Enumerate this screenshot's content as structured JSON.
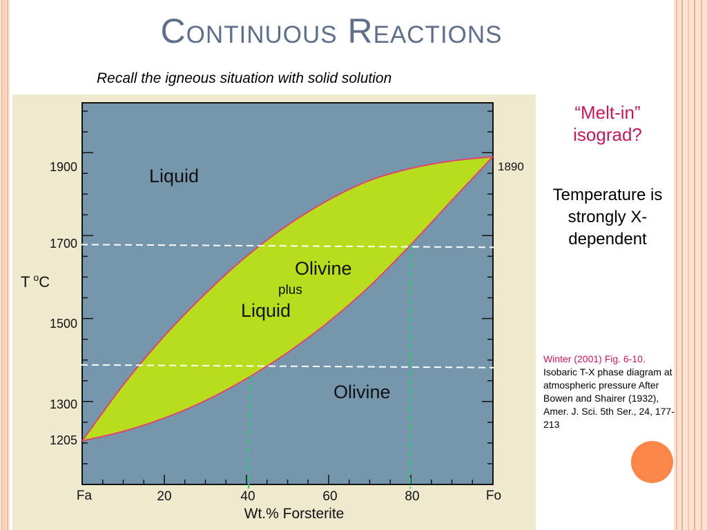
{
  "slide": {
    "title": "Continuous Reactions",
    "subtitle": "Recall the igneous situation with solid solution",
    "annotation_question": "“Melt-in” isograd?",
    "annotation_note": "Temperature is strongly X-dependent",
    "citation_ref": "Winter (2001) Fig. 6-10.",
    "citation_text": "Isobaric T-X phase diagram at atmospheric pressure After Bowen and Shairer (1932), Amer. J. Sci. 5th Ser., 24, 177-213"
  },
  "diagram": {
    "fields": {
      "liquid": "Liquid",
      "olivine_plus_liquid_1": "Olivine",
      "olivine_plus_liquid_2": "plus",
      "olivine_plus_liquid_3": "Liquid",
      "olivine": "Olivine"
    },
    "y_axis_label": "T",
    "y_axis_degree": "o",
    "y_axis_unit": "C",
    "x_axis_label": "Wt.% Forsterite",
    "y_ticks": [
      "1900",
      "1700",
      "1500",
      "1300"
    ],
    "x_ticks": [
      "Fa",
      "20",
      "40",
      "60",
      "80",
      "Fo"
    ],
    "endpoint_low": "1205",
    "endpoint_high": "1890",
    "colors": {
      "plot_bg": "#7596ad",
      "two_phase_field": "#b8dd1c",
      "boundary_curves": "#e0436f",
      "guide_lines_temperature": "#ffffff",
      "guide_lines_composition": "#21d36a"
    }
  },
  "chart_data": {
    "type": "line",
    "xlim": [
      0,
      100
    ],
    "ylim": [
      1100,
      2020
    ],
    "x_tick_values": [
      0,
      20,
      40,
      60,
      80,
      100
    ],
    "y_tick_values": [
      1900,
      1700,
      1500,
      1300
    ],
    "series": [
      {
        "values": [
          [
            0,
            1205
          ],
          [
            10,
            1340
          ],
          [
            20,
            1458
          ],
          [
            30,
            1560
          ],
          [
            40,
            1650
          ],
          [
            50,
            1725
          ],
          [
            60,
            1786
          ],
          [
            70,
            1833
          ],
          [
            80,
            1862
          ],
          [
            90,
            1880
          ],
          [
            100,
            1890
          ]
        ]
      },
      {
        "values": [
          [
            0,
            1205
          ],
          [
            10,
            1228
          ],
          [
            20,
            1260
          ],
          [
            30,
            1302
          ],
          [
            40,
            1355
          ],
          [
            50,
            1418
          ],
          [
            60,
            1492
          ],
          [
            70,
            1578
          ],
          [
            80,
            1678
          ],
          [
            90,
            1785
          ],
          [
            100,
            1890
          ]
        ]
      }
    ],
    "isotherms": [
      1675,
      1385
    ],
    "compositions": [
      41,
      80
    ]
  }
}
